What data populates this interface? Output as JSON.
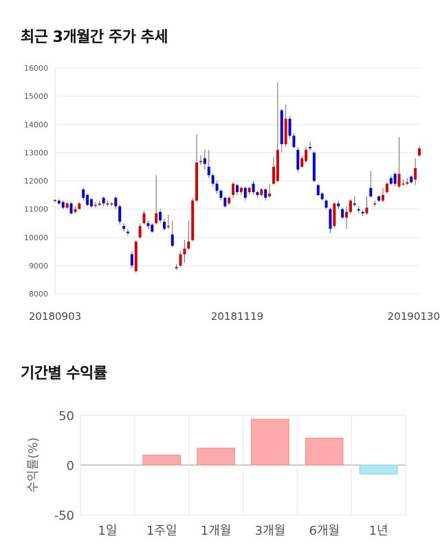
{
  "sections": {
    "price_title": "최근 3개월간 주가 추세",
    "return_title": "기간별 수익률"
  },
  "chart_data": [
    {
      "type": "candlestick",
      "ylim": [
        8000,
        16000
      ],
      "yticks": [
        "16000",
        "15000",
        "14000",
        "13000",
        "12000",
        "11000",
        "10000",
        "9000",
        "8000"
      ],
      "xticks": [
        "20180903",
        "20181119",
        "20190130"
      ],
      "grid": true,
      "colors": {
        "up": "#cc0000",
        "down": "#0000cc",
        "wick": "#666666"
      },
      "candles": [
        [
          11300,
          11320,
          11250,
          11350
        ],
        [
          11300,
          11200,
          11150,
          11350
        ],
        [
          11250,
          11050,
          11000,
          11300
        ],
        [
          11050,
          11200,
          11000,
          11250
        ],
        [
          11200,
          10850,
          10800,
          11250
        ],
        [
          10900,
          11000,
          10850,
          11100
        ],
        [
          11000,
          11200,
          11000,
          11250
        ],
        [
          11700,
          11400,
          11300,
          11750
        ],
        [
          11500,
          11150,
          11100,
          11550
        ],
        [
          11350,
          11100,
          11050,
          11400
        ],
        [
          11150,
          11150,
          11050,
          11250
        ],
        [
          11150,
          11200,
          11100,
          11300
        ],
        [
          11400,
          11200,
          11100,
          11450
        ],
        [
          11200,
          11200,
          11100,
          11300
        ],
        [
          11200,
          11200,
          11100,
          11250
        ],
        [
          11400,
          11100,
          11000,
          11450
        ],
        [
          11100,
          10550,
          10450,
          11150
        ],
        [
          10400,
          10300,
          10200,
          10500
        ],
        [
          10200,
          10150,
          10050,
          10300
        ],
        [
          9400,
          9000,
          8900,
          9500
        ],
        [
          8800,
          9850,
          8750,
          9900
        ],
        [
          10000,
          10400,
          9950,
          10500
        ],
        [
          10500,
          10850,
          10450,
          10950
        ],
        [
          10500,
          10400,
          10300,
          10600
        ],
        [
          10450,
          10200,
          10150,
          10500
        ],
        [
          10500,
          10850,
          10450,
          12200
        ],
        [
          10900,
          10600,
          10500,
          11000
        ],
        [
          10550,
          10300,
          10250,
          10650
        ],
        [
          10400,
          10400,
          10300,
          10800
        ],
        [
          10100,
          9700,
          9650,
          10600
        ],
        [
          8900,
          8950,
          8850,
          9050
        ],
        [
          9000,
          9400,
          8950,
          9500
        ],
        [
          9400,
          9600,
          9100,
          9900
        ],
        [
          9600,
          9850,
          9550,
          10600
        ],
        [
          9900,
          11300,
          9850,
          11400
        ],
        [
          11300,
          12650,
          11250,
          13650
        ],
        [
          12700,
          12700,
          12550,
          12900
        ],
        [
          12800,
          12600,
          12400,
          13100
        ],
        [
          12500,
          12200,
          12100,
          13100
        ],
        [
          12200,
          11900,
          11800,
          12250
        ],
        [
          11900,
          11650,
          11550,
          12000
        ],
        [
          11650,
          11400,
          11300,
          11700
        ],
        [
          11400,
          11100,
          11050,
          11450
        ],
        [
          11200,
          11400,
          11150,
          11450
        ],
        [
          11500,
          11900,
          11400,
          11950
        ],
        [
          11850,
          11600,
          11500,
          11900
        ],
        [
          11600,
          11750,
          11500,
          11800
        ],
        [
          11750,
          11400,
          11300,
          11800
        ],
        [
          11600,
          11750,
          11500,
          11800
        ],
        [
          11900,
          11600,
          11500,
          12000
        ],
        [
          11600,
          11500,
          11400,
          11650
        ],
        [
          11500,
          11700,
          11450,
          11750
        ],
        [
          11700,
          11400,
          11300,
          11750
        ],
        [
          11450,
          11550,
          11400,
          11900
        ],
        [
          11900,
          12500,
          11850,
          12850
        ],
        [
          12000,
          13100,
          11950,
          15500
        ],
        [
          14500,
          13300,
          13000,
          14550
        ],
        [
          13300,
          14200,
          13200,
          14700
        ],
        [
          14200,
          13600,
          13500,
          14300
        ],
        [
          13600,
          13200,
          13150,
          13700
        ],
        [
          13100,
          12400,
          12300,
          13200
        ],
        [
          12500,
          12800,
          12450,
          12900
        ],
        [
          12700,
          13100,
          12650,
          13200
        ],
        [
          13200,
          13150,
          13050,
          13400
        ],
        [
          13000,
          12000,
          11950,
          13050
        ],
        [
          11850,
          11500,
          11450,
          11900
        ],
        [
          11550,
          11350,
          11300,
          11600
        ],
        [
          11300,
          11050,
          11000,
          11350
        ],
        [
          11000,
          10300,
          10150,
          11050
        ],
        [
          10400,
          11200,
          10350,
          11250
        ],
        [
          11200,
          11100,
          11000,
          11300
        ],
        [
          11000,
          10700,
          10650,
          11050
        ],
        [
          10700,
          10900,
          10300,
          11100
        ],
        [
          10900,
          11300,
          10850,
          11350
        ],
        [
          11200,
          11150,
          11100,
          11450
        ],
        [
          11000,
          10950,
          10850,
          11100
        ],
        [
          10900,
          10850,
          10750,
          10950
        ],
        [
          10850,
          11050,
          10800,
          11450
        ],
        [
          11750,
          11450,
          11400,
          12350
        ],
        [
          11200,
          11200,
          11100,
          11300
        ],
        [
          11450,
          11300,
          11250,
          11500
        ],
        [
          11300,
          11500,
          11250,
          11750
        ],
        [
          11600,
          11900,
          11550,
          11950
        ],
        [
          12100,
          11900,
          11850,
          12200
        ],
        [
          12250,
          11900,
          11800,
          12300
        ],
        [
          11800,
          12250,
          11750,
          13550
        ],
        [
          11900,
          11900,
          11850,
          12050
        ],
        [
          11900,
          11950,
          11850,
          12100
        ],
        [
          12150,
          11950,
          11900,
          12200
        ],
        [
          12050,
          12450,
          11850,
          12800
        ],
        [
          12900,
          13150,
          12850,
          13250
        ]
      ]
    },
    {
      "type": "bar",
      "ylabel": "수익률(%)",
      "ylim": [
        -50,
        50
      ],
      "yticks": [
        "50",
        "0",
        "-50"
      ],
      "categories": [
        "1일",
        "1주일",
        "1개월",
        "3개월",
        "6개월",
        "1년"
      ],
      "values": [
        0,
        10,
        17,
        46,
        27,
        -9
      ],
      "colors": {
        "positive": "#ffaaaa",
        "positive_edge": "#e08888",
        "negative": "#aeeaf2",
        "negative_edge": "#88ccdd"
      }
    }
  ]
}
